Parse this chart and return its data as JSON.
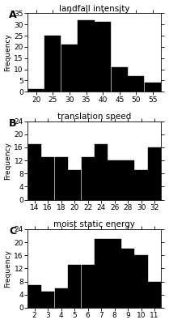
{
  "panel_A": {
    "title": "landfall intensity",
    "label": "A",
    "bin_centers": [
      20,
      25,
      30,
      35,
      40,
      45,
      50,
      55
    ],
    "bin_width": 5,
    "x_ticks": [
      20,
      25,
      30,
      35,
      40,
      45,
      50,
      55
    ],
    "frequencies": [
      1,
      25,
      21,
      32,
      31,
      11,
      7,
      4
    ],
    "xlim": [
      17.5,
      57.5
    ],
    "ylim": [
      0,
      35
    ],
    "yticks": [
      0,
      5,
      10,
      15,
      20,
      25,
      30,
      35
    ]
  },
  "panel_B": {
    "title": "translation speed",
    "label": "B",
    "bin_centers": [
      14,
      16,
      18,
      20,
      22,
      24,
      26,
      28,
      30,
      32
    ],
    "bin_width": 2,
    "x_ticks": [
      14,
      16,
      18,
      20,
      22,
      24,
      26,
      28,
      30,
      32
    ],
    "frequencies": [
      17,
      13,
      13,
      9,
      13,
      17,
      12,
      12,
      9,
      16
    ],
    "xlim": [
      13,
      33
    ],
    "ylim": [
      0,
      24
    ],
    "yticks": [
      0,
      4,
      8,
      12,
      16,
      20,
      24
    ]
  },
  "panel_C": {
    "title": "moist static energy",
    "label": "C",
    "bin_centers": [
      2,
      3,
      4,
      5,
      6,
      7,
      8,
      9,
      10,
      11
    ],
    "bin_width": 1,
    "x_ticks": [
      2,
      3,
      4,
      5,
      6,
      7,
      8,
      9,
      10,
      11
    ],
    "frequencies": [
      7,
      5,
      6,
      13,
      13,
      21,
      21,
      18,
      16,
      8
    ],
    "xlim": [
      1.5,
      11.5
    ],
    "ylim": [
      0,
      24
    ],
    "yticks": [
      0,
      4,
      8,
      12,
      16,
      20,
      24
    ]
  },
  "bar_color": "#000000",
  "bar_edge_color": "#000000",
  "ylabel": "Frequency",
  "background_color": "#ffffff",
  "tick_fontsize": 6.5,
  "title_fontsize": 7.5,
  "label_fontsize": 9
}
